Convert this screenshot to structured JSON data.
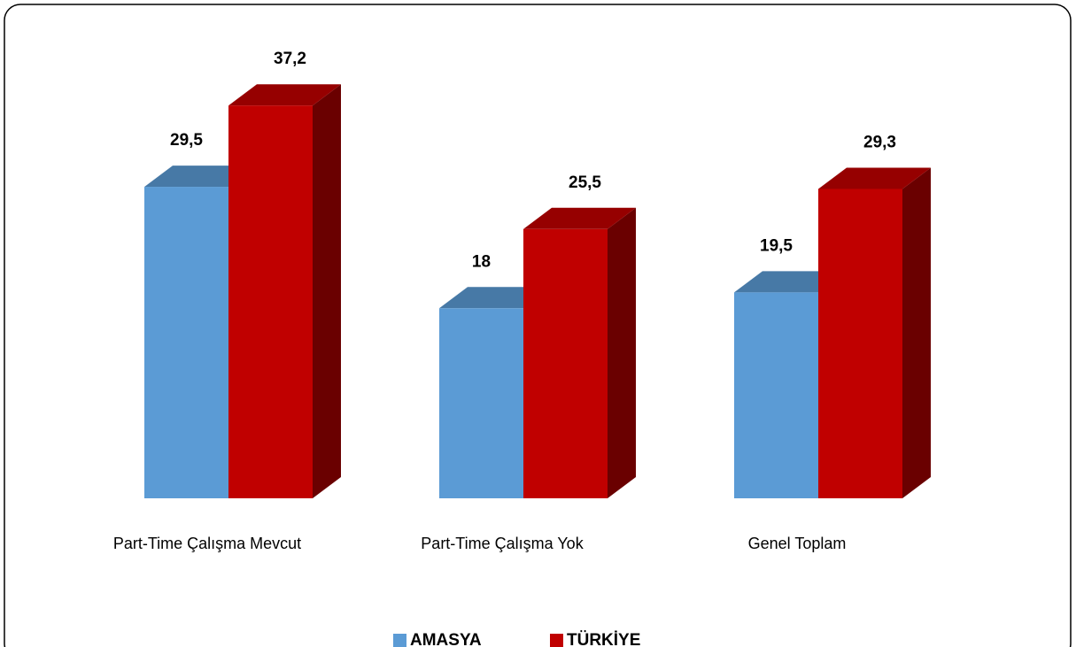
{
  "chart_data": {
    "type": "bar3d",
    "categories": [
      "Part-Time Çalışma Mevcut",
      "Part-Time Çalışma Yok",
      "Genel Toplam"
    ],
    "series": [
      {
        "name": "AMASYA",
        "color": "#5b9bd5",
        "values": [
          29.5,
          18,
          19.5
        ],
        "value_labels": [
          "29,5",
          "18",
          "19,5"
        ]
      },
      {
        "name": "TÜRKİYE",
        "color": "#c00000",
        "values": [
          37.2,
          25.5,
          29.3
        ],
        "value_labels": [
          "37,2",
          "25,5",
          "29,3"
        ]
      }
    ]
  }
}
